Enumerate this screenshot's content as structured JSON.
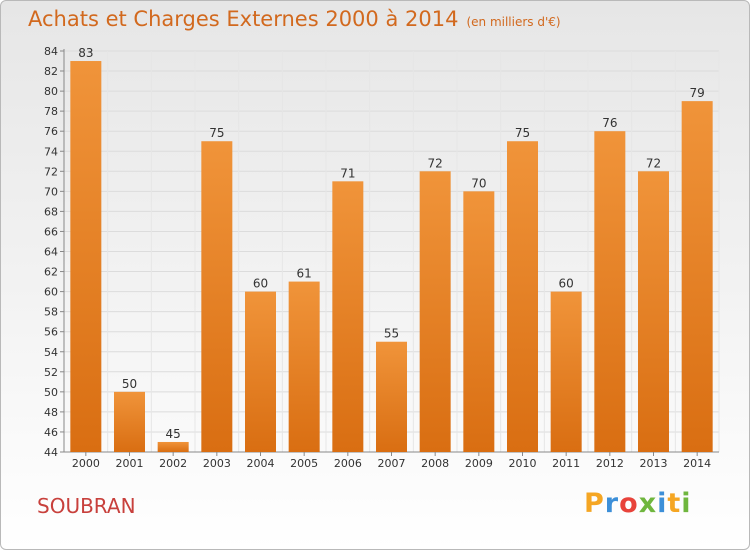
{
  "chart_data": {
    "type": "bar",
    "title": "Achats et Charges Externes 2000 à 2014",
    "subtitle": "(en milliers d'€)",
    "categories": [
      "2000",
      "2001",
      "2002",
      "2003",
      "2004",
      "2005",
      "2006",
      "2007",
      "2008",
      "2009",
      "2010",
      "2011",
      "2012",
      "2013",
      "2014"
    ],
    "values": [
      83,
      50,
      45,
      75,
      60,
      61,
      71,
      55,
      72,
      70,
      75,
      60,
      76,
      72,
      79
    ],
    "ylim": [
      44,
      84
    ],
    "ytick_step": 2,
    "grid": true,
    "bar_color": "#f0943a",
    "bar_color_dark": "#d96e12",
    "title_color": "#d2691e"
  },
  "commune": "SOUBRAN",
  "logo": {
    "text": "Proxiti",
    "letters": [
      "P",
      "r",
      "o",
      "x",
      "i",
      "t",
      "i"
    ],
    "colors": [
      "#f5a623",
      "#3c8fd8",
      "#e8433b",
      "#6fb63e",
      "#3c8fd8",
      "#f5a623",
      "#6fb63e"
    ]
  }
}
